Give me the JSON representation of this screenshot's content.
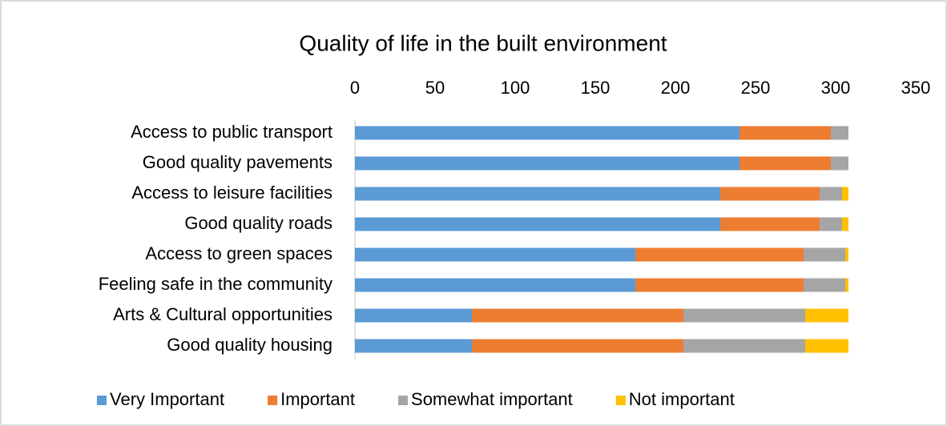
{
  "chart_data": {
    "type": "stacked-barh",
    "title": "Quality of life in the built environment",
    "categories": [
      "Access to public transport",
      "Good quality pavements",
      "Access to leisure facilities",
      "Good quality roads",
      "Access to green spaces",
      "Feeling safe in the community",
      "Arts & Cultural opportunities",
      "Good quality housing"
    ],
    "series": [
      {
        "name": "Very Important",
        "color": "#5b9bd5",
        "values": [
          240,
          240,
          228,
          228,
          175,
          175,
          73,
          73
        ]
      },
      {
        "name": "Important",
        "color": "#ed7d31",
        "values": [
          57,
          57,
          62,
          62,
          105,
          105,
          132,
          132
        ]
      },
      {
        "name": "Somewhat important",
        "color": "#a5a5a5",
        "values": [
          11,
          11,
          14,
          14,
          26,
          26,
          76,
          76
        ]
      },
      {
        "name": "Not important",
        "color": "#ffc000",
        "values": [
          0,
          0,
          4,
          4,
          2,
          2,
          27,
          27
        ]
      }
    ],
    "xlim": [
      0,
      350
    ],
    "xticks": [
      0,
      50,
      100,
      150,
      200,
      250,
      300,
      350
    ],
    "grid": false,
    "legend": "bottom"
  }
}
